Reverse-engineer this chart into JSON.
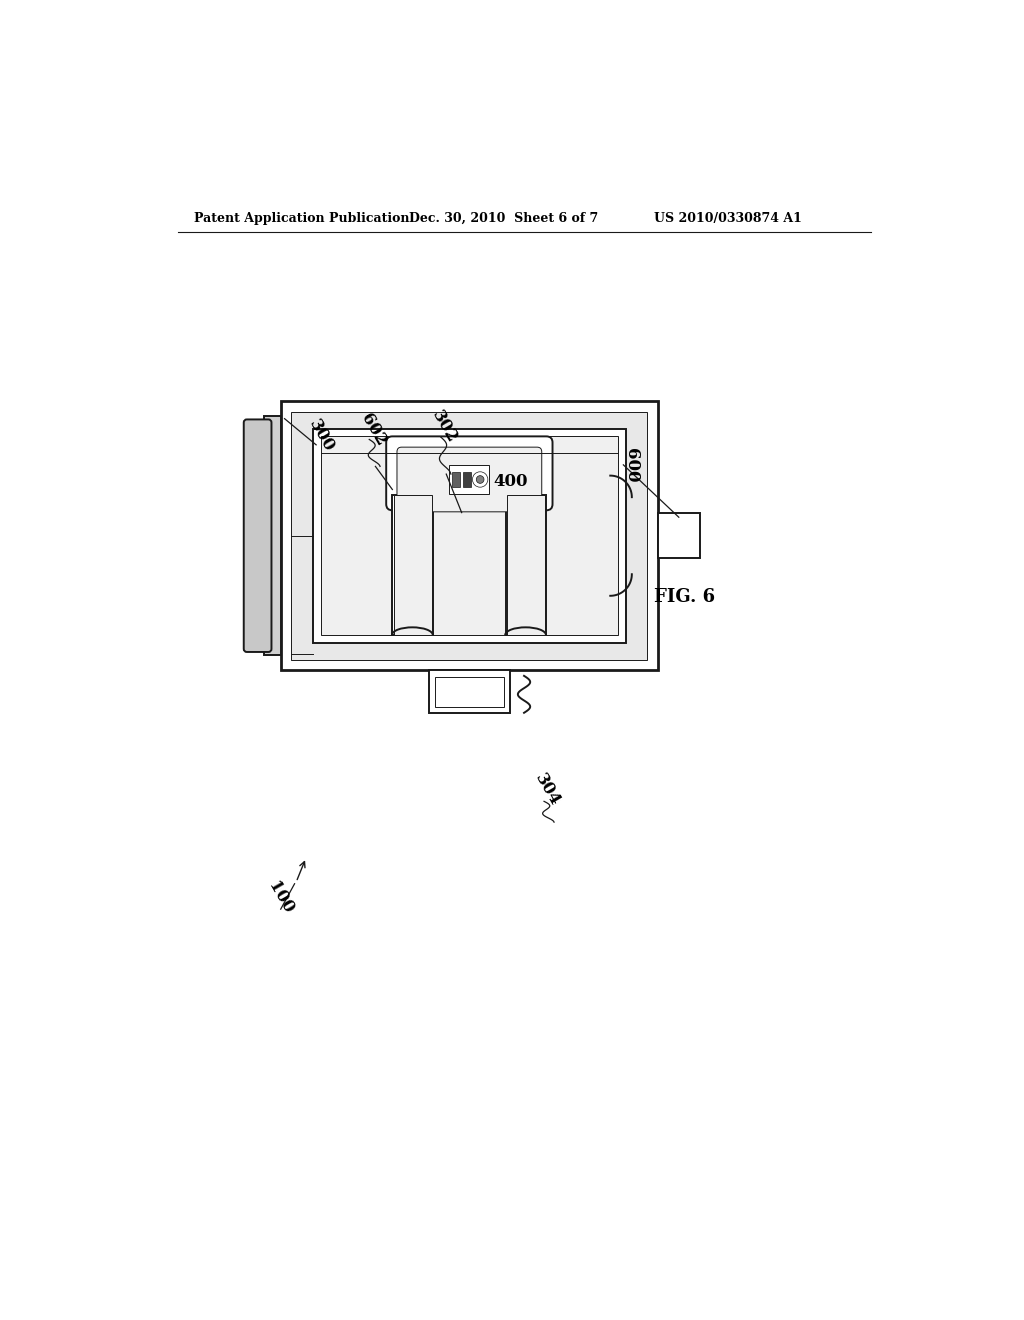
{
  "background_color": "#ffffff",
  "header_left": "Patent Application Publication",
  "header_mid": "Dec. 30, 2010  Sheet 6 of 7",
  "header_right": "US 2010/0330874 A1",
  "fig_label": "FIG. 6",
  "line_color": "#1a1a1a",
  "lw": 1.4,
  "lw_thin": 0.7,
  "lw_thick": 2.0
}
